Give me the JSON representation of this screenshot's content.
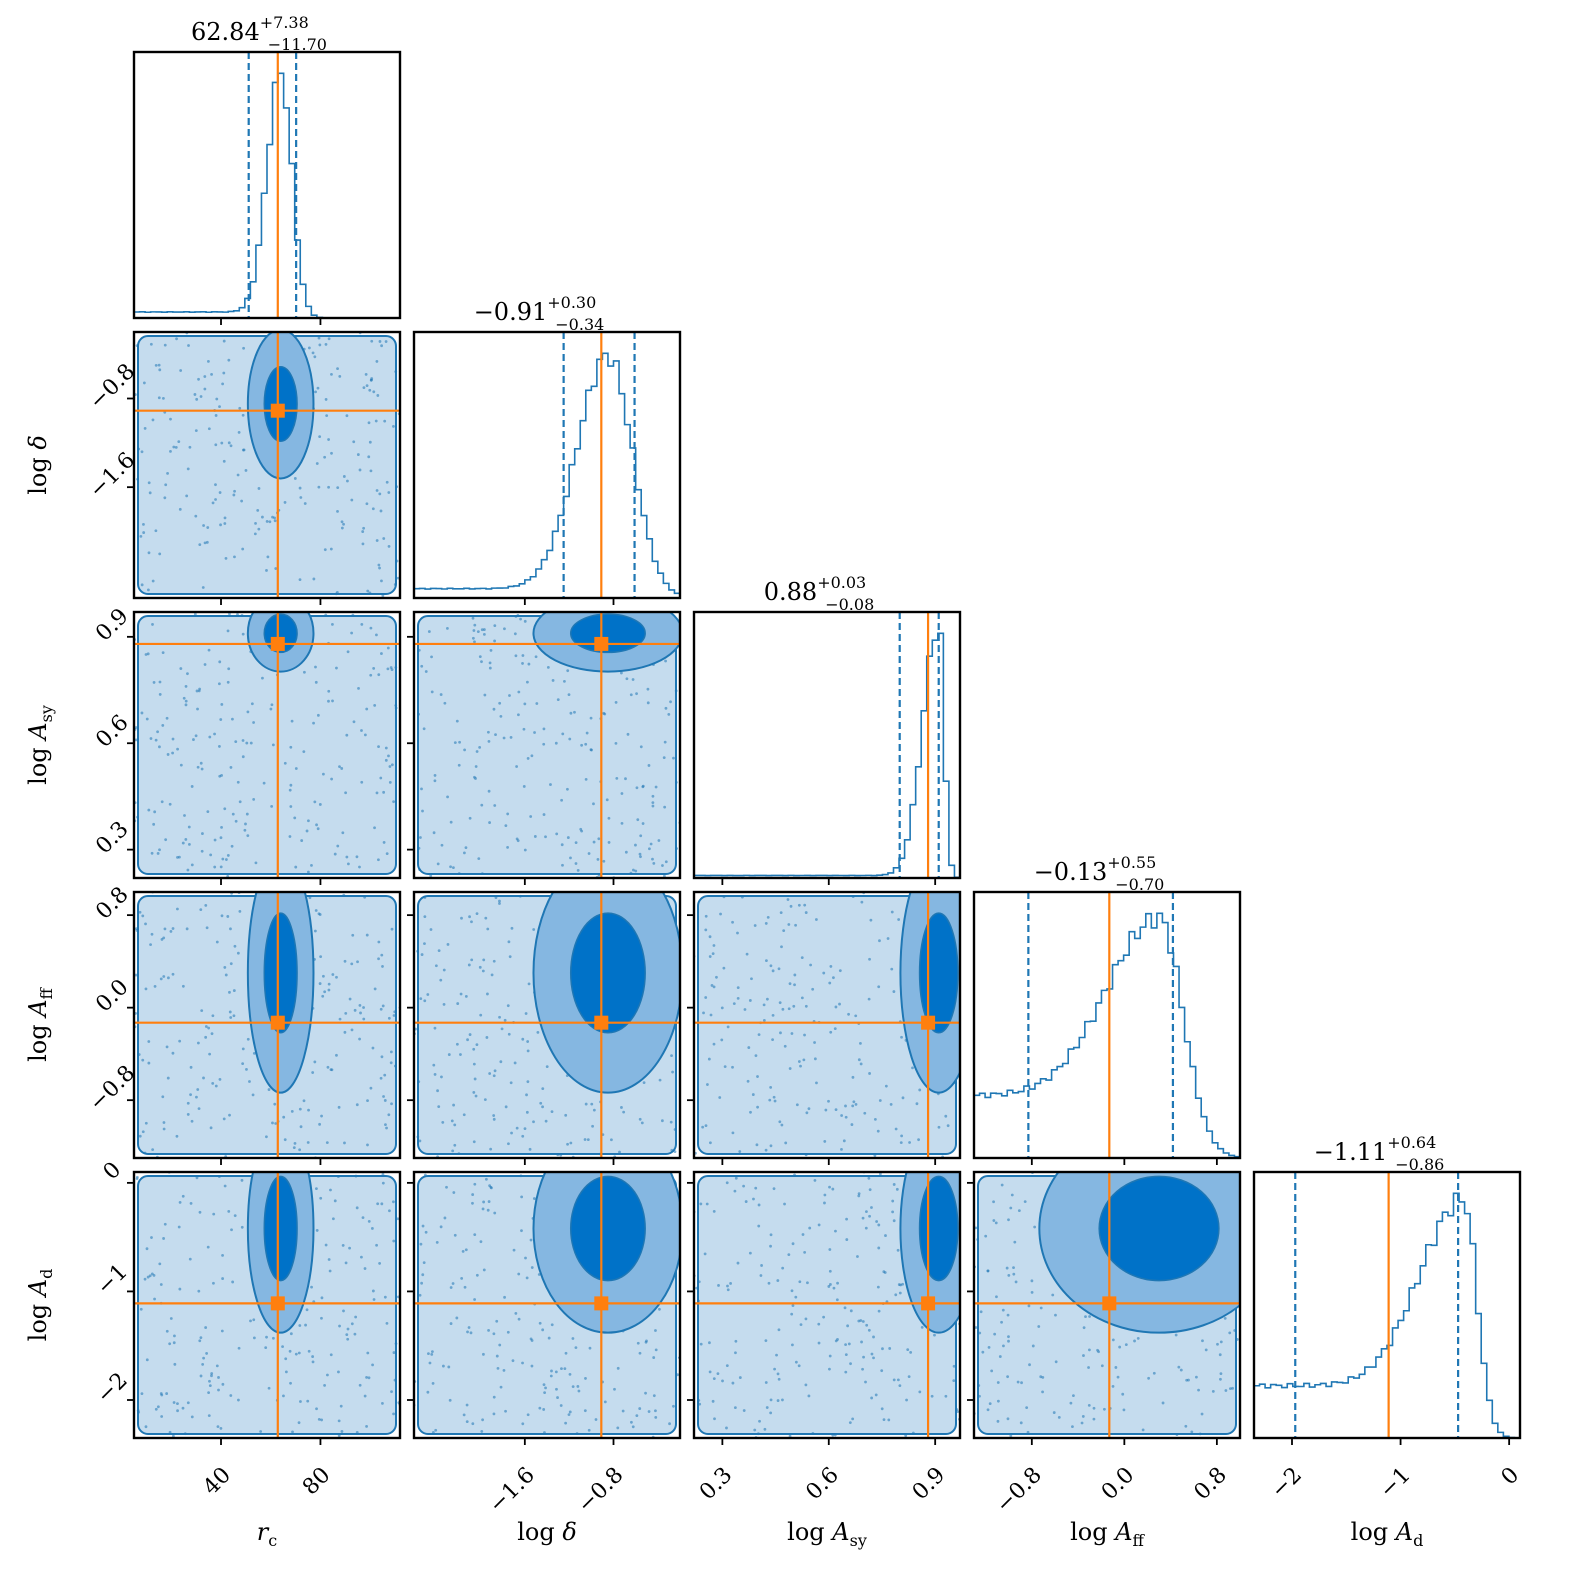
{
  "colors": {
    "hist": "#1f77b4",
    "truth": "#ff7f0e",
    "contour_fill": [
      "#c5dcee",
      "#85b7e1",
      "#0072c8"
    ],
    "contour_line": "#1f77b4",
    "frame": "#000000"
  },
  "chart_data": {
    "type": "corner",
    "parameters": [
      {
        "name": "r_c",
        "label_main": "r",
        "label_sub": "c",
        "label_prefix": "",
        "range": [
          5,
          112
        ],
        "ticks": [
          40,
          80
        ],
        "tick_labels": [
          "40",
          "80"
        ],
        "median": 62.84,
        "q_lo": 51.14,
        "q_hi": 70.22,
        "truth": 62.84,
        "title_value": "62.84",
        "title_plus": "+7.38",
        "title_minus": "−11.70",
        "shape": {
          "peak": 64,
          "width_left": 5.5,
          "width_right": 4.5,
          "tail": 0.025
        }
      },
      {
        "name": "log_delta",
        "label_main": "δ",
        "label_sub": "",
        "label_prefix": "log ",
        "range": [
          -2.6,
          -0.2
        ],
        "ticks": [
          -1.6,
          -0.8
        ],
        "tick_labels": [
          "−1.6",
          "−0.8"
        ],
        "median": -0.91,
        "q_lo": -1.25,
        "q_hi": -0.61,
        "truth": -0.91,
        "title_value": "−0.91",
        "title_plus": "+0.30",
        "title_minus": "−0.34",
        "shape": {
          "peak": -0.85,
          "width_left": 0.28,
          "width_right": 0.22,
          "tail": 0.04
        }
      },
      {
        "name": "log_A_sy",
        "label_main": "A",
        "label_sub": "sy",
        "label_prefix": "log ",
        "range": [
          0.22,
          0.97
        ],
        "ticks": [
          0.3,
          0.6,
          0.9
        ],
        "tick_labels": [
          "0.3",
          "0.6",
          "0.9"
        ],
        "median": 0.88,
        "q_lo": 0.8,
        "q_hi": 0.91,
        "truth": 0.88,
        "title_value": "0.88",
        "title_plus": "+0.03",
        "title_minus": "−0.08",
        "shape": {
          "peak": 0.91,
          "width_left": 0.045,
          "width_right": 0.015,
          "tail": 0.01
        }
      },
      {
        "name": "log_A_ff",
        "label_main": "A",
        "label_sub": "ff",
        "label_prefix": "log ",
        "range": [
          -1.3,
          1.0
        ],
        "ticks": [
          -0.8,
          0.0,
          0.8
        ],
        "tick_labels": [
          "−0.8",
          "0.0",
          "0.8"
        ],
        "median": -0.13,
        "q_lo": -0.83,
        "q_hi": 0.42,
        "truth": -0.13,
        "title_value": "−0.13",
        "title_plus": "+0.55",
        "title_minus": "−0.70",
        "shape": {
          "peak": 0.3,
          "width_left": 0.45,
          "width_right": 0.2,
          "tail": 0.35
        }
      },
      {
        "name": "log_A_d",
        "label_main": "A",
        "label_sub": "d",
        "label_prefix": "log ",
        "range": [
          -2.35,
          0.1
        ],
        "ticks": [
          -2,
          -1,
          0
        ],
        "tick_labels": [
          "−2",
          "−1",
          "0"
        ],
        "median": -1.11,
        "q_lo": -1.97,
        "q_hi": -0.47,
        "truth": -1.11,
        "title_value": "−1.11",
        "title_plus": "+0.64",
        "title_minus": "−0.86",
        "shape": {
          "peak": -0.42,
          "width_left": 0.4,
          "width_right": 0.12,
          "tail": 0.28
        }
      }
    ],
    "grid": false,
    "legend": "none"
  }
}
